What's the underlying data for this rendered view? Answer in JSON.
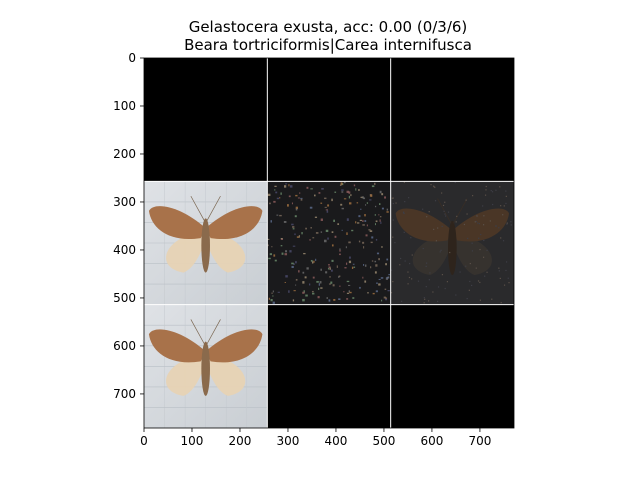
{
  "title": {
    "line1": "Gelastocera exusta, acc: 0.00 (0/3/6)",
    "line2": "Beara tortriciformis|Carea internifusca"
  },
  "chart_data": {
    "type": "image-grid",
    "x_ticks": [
      0,
      100,
      200,
      300,
      400,
      500,
      600,
      700
    ],
    "y_ticks": [
      0,
      100,
      200,
      300,
      400,
      500,
      600,
      700
    ],
    "xlim": [
      0,
      771
    ],
    "ylim": [
      771,
      0
    ],
    "grid": {
      "rows": 3,
      "cols": 3,
      "cell_size": 257
    },
    "cells": [
      {
        "row": 0,
        "col": 0,
        "content": "black"
      },
      {
        "row": 0,
        "col": 1,
        "content": "black"
      },
      {
        "row": 0,
        "col": 2,
        "content": "black"
      },
      {
        "row": 1,
        "col": 0,
        "content": "moth-photo"
      },
      {
        "row": 1,
        "col": 1,
        "content": "noise-map"
      },
      {
        "row": 1,
        "col": 2,
        "content": "dark-moth"
      },
      {
        "row": 2,
        "col": 0,
        "content": "moth-photo"
      },
      {
        "row": 2,
        "col": 1,
        "content": "black"
      },
      {
        "row": 2,
        "col": 2,
        "content": "black"
      }
    ],
    "colors": {
      "black": "#000000",
      "moth_bg": "#d5d9dd",
      "wing": "#a8724a",
      "hind_wing": "#e7d3b4",
      "dark_bg": "#2a2a2c",
      "divider": "#ffffff"
    }
  }
}
